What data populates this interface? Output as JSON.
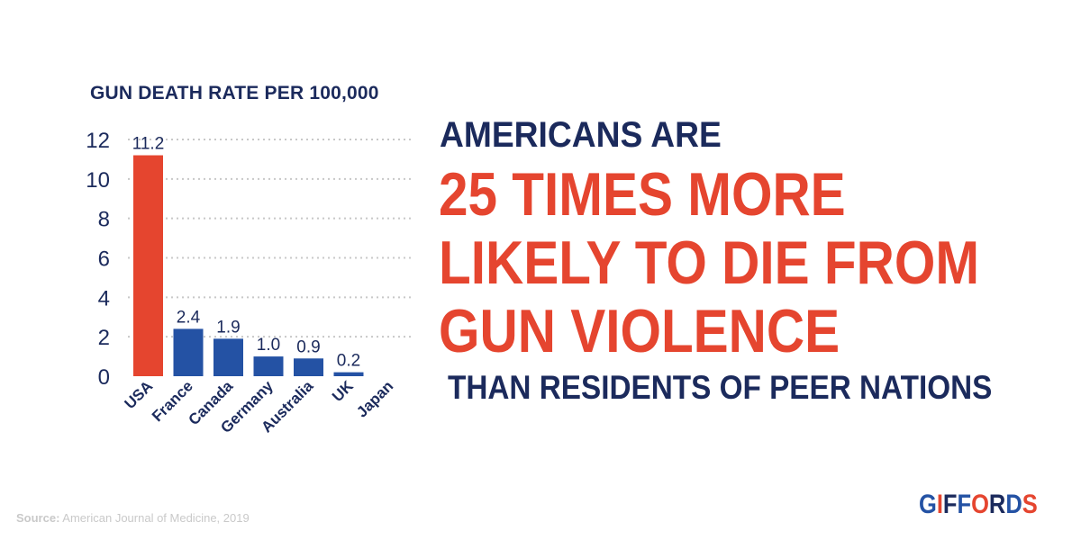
{
  "chart_data": {
    "type": "bar",
    "title": "GUN DEATH RATE PER 100,000",
    "categories": [
      "USA",
      "France",
      "Canada",
      "Germany",
      "Australia",
      "UK",
      "Japan"
    ],
    "values": [
      11.2,
      2.4,
      1.9,
      1.0,
      0.9,
      0.2,
      0
    ],
    "value_labels": [
      "11.2",
      "2.4",
      "1.9",
      "1.0",
      "0.9",
      "0.2",
      ""
    ],
    "bar_colors": [
      "#e5452f",
      "#2452a4",
      "#2452a4",
      "#2452a4",
      "#2452a4",
      "#2452a4",
      "#2452a4"
    ],
    "yticks": [
      0,
      2,
      4,
      6,
      8,
      10,
      12
    ],
    "ylim": [
      0,
      12
    ],
    "grid": true,
    "xlabel": "",
    "ylabel": ""
  },
  "headline": {
    "top": "AMERICANS ARE",
    "main_lines": [
      "25 TIMES MORE",
      "LIKELY TO DIE FROM",
      "GUN VIOLENCE"
    ],
    "bottom": "THAN RESIDENTS OF PEER NATIONS"
  },
  "source": {
    "label": "Source:",
    "text": " American Journal of Medicine, 2019"
  },
  "logo": {
    "text": "GIFFORDS"
  },
  "colors": {
    "navy": "#1b2a5c",
    "red": "#e5452f",
    "blue": "#2452a4",
    "grid": "#c8c8c8",
    "source": "#c9c9c9"
  }
}
